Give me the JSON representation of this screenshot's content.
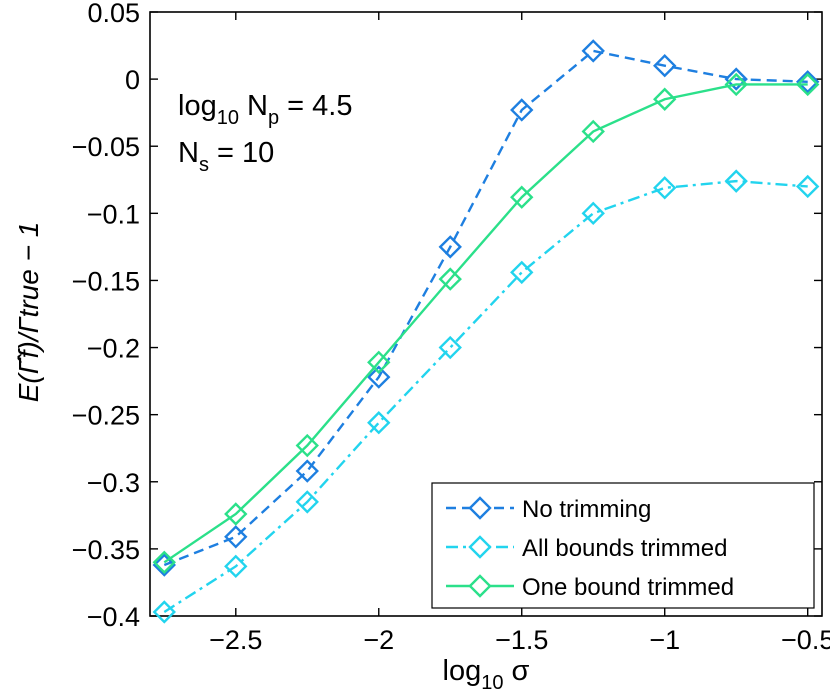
{
  "chart_data": {
    "type": "line",
    "title": "",
    "xlabel": "log10 σ",
    "ylabel": "E(Γ̂f)/Γtrue − 1",
    "xlim": [
      -2.8,
      -0.45
    ],
    "ylim": [
      -0.4,
      0.05
    ],
    "xticks": [
      -2.5,
      -2,
      -1.5,
      -1,
      -0.5
    ],
    "xtick_labels": [
      "−2.5",
      "−2",
      "−1.5",
      "−1",
      "−0.5"
    ],
    "yticks": [
      0.05,
      0,
      -0.05,
      -0.1,
      -0.15,
      -0.2,
      -0.25,
      -0.3,
      -0.35,
      -0.4
    ],
    "ytick_labels": [
      "0.05",
      "0",
      "−0.05",
      "−0.1",
      "−0.15",
      "−0.2",
      "−0.25",
      "−0.3",
      "−0.35",
      "−0.4"
    ],
    "x": [
      -2.75,
      -2.5,
      -2.25,
      -2,
      -1.75,
      -1.5,
      -1.25,
      -1,
      -0.75,
      -0.5
    ],
    "series": [
      {
        "name": "No trimming",
        "color": "#1E7FE0",
        "dash": "dashed",
        "values": [
          -0.362,
          -0.341,
          -0.292,
          -0.222,
          -0.125,
          -0.023,
          0.021,
          0.01,
          0.0,
          -0.002
        ]
      },
      {
        "name": "All bounds trimmed",
        "color": "#22D4EE",
        "dash": "dashdot",
        "values": [
          -0.397,
          -0.363,
          -0.315,
          -0.256,
          -0.2,
          -0.144,
          -0.1,
          -0.081,
          -0.076,
          -0.08
        ]
      },
      {
        "name": "One bound trimmed",
        "color": "#2BE08A",
        "dash": "solid",
        "values": [
          -0.36,
          -0.324,
          -0.273,
          -0.211,
          -0.149,
          -0.088,
          -0.039,
          -0.015,
          -0.004,
          -0.004
        ]
      }
    ],
    "annotations": {
      "np_line": {
        "base": "log",
        "sub": "10",
        "mid": " N",
        "sub2": "p",
        "tail": " = 4.5"
      },
      "ns_line": {
        "base": "N",
        "sub": "s",
        "tail": " = 10"
      }
    },
    "xlabel_parts": {
      "base": "log",
      "sub": "10",
      "tail": " σ"
    },
    "ylabel_text": "E(Γ̂f)/Γtrue − 1",
    "legend_position": "bottom-right"
  }
}
